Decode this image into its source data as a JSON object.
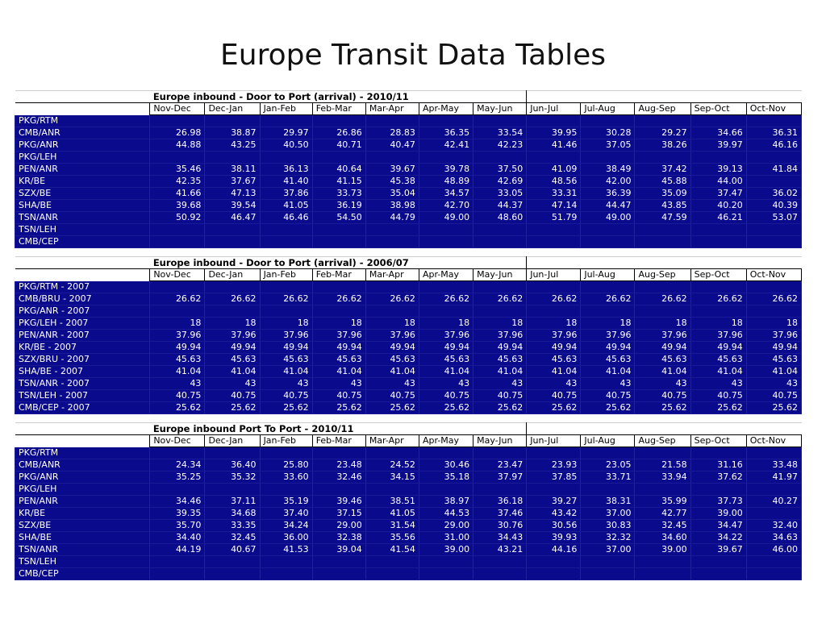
{
  "title": "Europe Transit Data Tables",
  "months_a": [
    "Nov-Dec",
    "Dec-Jan",
    "Jan-Feb",
    "Feb-Mar",
    "Mar-Apr",
    "Apr-May",
    "May-Jun",
    "Jun-Jul",
    "Jul-Aug",
    "Aug-Sep",
    "Sep-Oct",
    "Oct-Nov"
  ],
  "tables": [
    {
      "header": "Europe inbound - Door to Port (arrival) - 2010/11",
      "rows": [
        {
          "label": "PKG/RTM",
          "values": [
            "",
            "",
            "",
            "",
            "",
            "",
            "",
            "",
            "",
            "",
            "",
            ""
          ]
        },
        {
          "label": "CMB/ANR",
          "values": [
            "26.98",
            "38.87",
            "29.97",
            "26.86",
            "28.83",
            "36.35",
            "33.54",
            "39.95",
            "30.28",
            "29.27",
            "34.66",
            "36.31"
          ]
        },
        {
          "label": "PKG/ANR",
          "values": [
            "44.88",
            "43.25",
            "40.50",
            "40.71",
            "40.47",
            "42.41",
            "42.23",
            "41.46",
            "37.05",
            "38.26",
            "39.97",
            "46.16"
          ]
        },
        {
          "label": "PKG/LEH",
          "values": [
            "",
            "",
            "",
            "",
            "",
            "",
            "",
            "",
            "",
            "",
            "",
            ""
          ]
        },
        {
          "label": "PEN/ANR",
          "values": [
            "35.46",
            "38.11",
            "36.13",
            "40.64",
            "39.67",
            "39.78",
            "37.50",
            "41.09",
            "38.49",
            "37.42",
            "39.13",
            "41.84"
          ]
        },
        {
          "label": "KR/BE",
          "values": [
            "42.35",
            "37.67",
            "41.40",
            "41.15",
            "45.38",
            "48.89",
            "42.69",
            "48.56",
            "42.00",
            "45.88",
            "44.00",
            ""
          ]
        },
        {
          "label": "SZX/BE",
          "values": [
            "41.66",
            "47.13",
            "37.86",
            "33.73",
            "35.04",
            "34.57",
            "33.05",
            "33.31",
            "36.39",
            "35.09",
            "37.47",
            "36.02"
          ]
        },
        {
          "label": "SHA/BE",
          "values": [
            "39.68",
            "39.54",
            "41.05",
            "36.19",
            "38.98",
            "42.70",
            "44.37",
            "47.14",
            "44.47",
            "43.85",
            "40.20",
            "40.39"
          ]
        },
        {
          "label": "TSN/ANR",
          "values": [
            "50.92",
            "46.47",
            "46.46",
            "54.50",
            "44.79",
            "49.00",
            "48.60",
            "51.79",
            "49.00",
            "47.59",
            "46.21",
            "53.07"
          ]
        },
        {
          "label": "TSN/LEH",
          "values": [
            "",
            "",
            "",
            "",
            "",
            "",
            "",
            "",
            "",
            "",
            "",
            ""
          ]
        },
        {
          "label": "CMB/CEP",
          "values": [
            "",
            "",
            "",
            "",
            "",
            "",
            "",
            "",
            "",
            "",
            "",
            ""
          ]
        }
      ]
    },
    {
      "header": "Europe inbound - Door to Port (arrival) - 2006/07",
      "rows": [
        {
          "label": "PKG/RTM - 2007",
          "values": [
            "",
            "",
            "",
            "",
            "",
            "",
            "",
            "",
            "",
            "",
            "",
            ""
          ]
        },
        {
          "label": "CMB/BRU - 2007",
          "values": [
            "26.62",
            "26.62",
            "26.62",
            "26.62",
            "26.62",
            "26.62",
            "26.62",
            "26.62",
            "26.62",
            "26.62",
            "26.62",
            "26.62"
          ]
        },
        {
          "label": "PKG/ANR - 2007",
          "values": [
            "",
            "",
            "",
            "",
            "",
            "",
            "",
            "",
            "",
            "",
            "",
            ""
          ]
        },
        {
          "label": "PKG/LEH - 2007",
          "values": [
            "18",
            "18",
            "18",
            "18",
            "18",
            "18",
            "18",
            "18",
            "18",
            "18",
            "18",
            "18"
          ]
        },
        {
          "label": "PEN/ANR - 2007",
          "values": [
            "37.96",
            "37.96",
            "37.96",
            "37.96",
            "37.96",
            "37.96",
            "37.96",
            "37.96",
            "37.96",
            "37.96",
            "37.96",
            "37.96"
          ]
        },
        {
          "label": "KR/BE - 2007",
          "values": [
            "49.94",
            "49.94",
            "49.94",
            "49.94",
            "49.94",
            "49.94",
            "49.94",
            "49.94",
            "49.94",
            "49.94",
            "49.94",
            "49.94"
          ]
        },
        {
          "label": "SZX/BRU - 2007",
          "values": [
            "45.63",
            "45.63",
            "45.63",
            "45.63",
            "45.63",
            "45.63",
            "45.63",
            "45.63",
            "45.63",
            "45.63",
            "45.63",
            "45.63"
          ]
        },
        {
          "label": "SHA/BE - 2007",
          "values": [
            "41.04",
            "41.04",
            "41.04",
            "41.04",
            "41.04",
            "41.04",
            "41.04",
            "41.04",
            "41.04",
            "41.04",
            "41.04",
            "41.04"
          ]
        },
        {
          "label": "TSN/ANR - 2007",
          "values": [
            "43",
            "43",
            "43",
            "43",
            "43",
            "43",
            "43",
            "43",
            "43",
            "43",
            "43",
            "43"
          ]
        },
        {
          "label": "TSN/LEH - 2007",
          "values": [
            "40.75",
            "40.75",
            "40.75",
            "40.75",
            "40.75",
            "40.75",
            "40.75",
            "40.75",
            "40.75",
            "40.75",
            "40.75",
            "40.75"
          ]
        },
        {
          "label": "CMB/CEP - 2007",
          "values": [
            "25.62",
            "25.62",
            "25.62",
            "25.62",
            "25.62",
            "25.62",
            "25.62",
            "25.62",
            "25.62",
            "25.62",
            "25.62",
            "25.62"
          ]
        }
      ]
    },
    {
      "header": "Europe inbound Port To Port - 2010/11",
      "rows": [
        {
          "label": "PKG/RTM",
          "values": [
            "",
            "",
            "",
            "",
            "",
            "",
            "",
            "",
            "",
            "",
            "",
            ""
          ]
        },
        {
          "label": "CMB/ANR",
          "values": [
            "24.34",
            "36.40",
            "25.80",
            "23.48",
            "24.52",
            "30.46",
            "23.47",
            "23.93",
            "23.05",
            "21.58",
            "31.16",
            "33.48"
          ]
        },
        {
          "label": "PKG/ANR",
          "values": [
            "35.25",
            "35.32",
            "33.60",
            "32.46",
            "34.15",
            "35.18",
            "37.97",
            "37.85",
            "33.71",
            "33.94",
            "37.62",
            "41.97"
          ]
        },
        {
          "label": "PKG/LEH",
          "values": [
            "",
            "",
            "",
            "",
            "",
            "",
            "",
            "",
            "",
            "",
            "",
            ""
          ]
        },
        {
          "label": "PEN/ANR",
          "values": [
            "34.46",
            "37.11",
            "35.19",
            "39.46",
            "38.51",
            "38.97",
            "36.18",
            "39.27",
            "38.31",
            "35.99",
            "37.73",
            "40.27"
          ]
        },
        {
          "label": "KR/BE",
          "values": [
            "39.35",
            "34.68",
            "37.40",
            "37.15",
            "41.05",
            "44.53",
            "37.46",
            "43.42",
            "37.00",
            "42.77",
            "39.00",
            ""
          ]
        },
        {
          "label": "SZX/BE",
          "values": [
            "35.70",
            "33.35",
            "34.24",
            "29.00",
            "31.54",
            "29.00",
            "30.76",
            "30.56",
            "30.83",
            "32.45",
            "34.47",
            "32.40"
          ]
        },
        {
          "label": "SHA/BE",
          "values": [
            "34.40",
            "32.45",
            "36.00",
            "32.38",
            "35.56",
            "31.00",
            "34.43",
            "39.93",
            "32.32",
            "34.60",
            "34.22",
            "34.63"
          ]
        },
        {
          "label": "TSN/ANR",
          "values": [
            "44.19",
            "40.67",
            "41.53",
            "39.04",
            "41.54",
            "39.00",
            "43.21",
            "44.16",
            "37.00",
            "39.00",
            "39.67",
            "46.00"
          ]
        },
        {
          "label": "TSN/LEH",
          "values": [
            "",
            "",
            "",
            "",
            "",
            "",
            "",
            "",
            "",
            "",
            "",
            ""
          ]
        },
        {
          "label": "CMB/CEP",
          "values": [
            "",
            "",
            "",
            "",
            "",
            "",
            "",
            "",
            "",
            "",
            "",
            ""
          ]
        }
      ]
    }
  ]
}
